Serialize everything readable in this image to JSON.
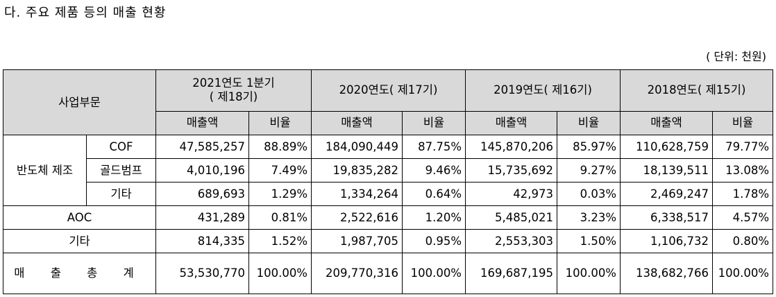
{
  "title": "다. 주요 제품 등의 매출 현황",
  "unit": "( 단위: 천원)",
  "header": {
    "segment": "사업부문",
    "periods": [
      {
        "line1": "2021연도 1분기",
        "line2": "( 제18기)"
      },
      {
        "line1": "2020연도( 제17기)"
      },
      {
        "line1": "2019연도( 제16기)"
      },
      {
        "line1": "2018연도( 제15기)"
      }
    ],
    "sales": "매출액",
    "ratio": "비율"
  },
  "rows": [
    {
      "group": "반도체 제조",
      "sub": "COF",
      "cells": [
        "47,585,257",
        "88.89%",
        "184,090,449",
        "87.75%",
        "145,870,206",
        "85.97%",
        "110,628,759",
        "79.77%"
      ]
    },
    {
      "sub": "골드범프",
      "cells": [
        "4,010,196",
        "7.49%",
        "19,835,282",
        "9.46%",
        "15,735,692",
        "9.27%",
        "18,139,511",
        "13.08%"
      ]
    },
    {
      "sub": "기타",
      "cells": [
        "689,693",
        "1.29%",
        "1,334,264",
        "0.64%",
        "42,973",
        "0.03%",
        "2,469,247",
        "1.78%"
      ]
    },
    {
      "label": "AOC",
      "cells": [
        "431,289",
        "0.81%",
        "2,522,616",
        "1.20%",
        "5,485,021",
        "3.23%",
        "6,338,517",
        "4.57%"
      ]
    },
    {
      "label": "기타",
      "cells": [
        "814,335",
        "1.52%",
        "1,987,705",
        "0.95%",
        "2,553,303",
        "1.50%",
        "1,106,732",
        "0.80%"
      ]
    },
    {
      "label": "매 출 총 계",
      "cells": [
        "53,530,770",
        "100.00%",
        "209,770,316",
        "100.00%",
        "169,687,195",
        "100.00%",
        "138,682,766",
        "100.00%"
      ]
    }
  ]
}
